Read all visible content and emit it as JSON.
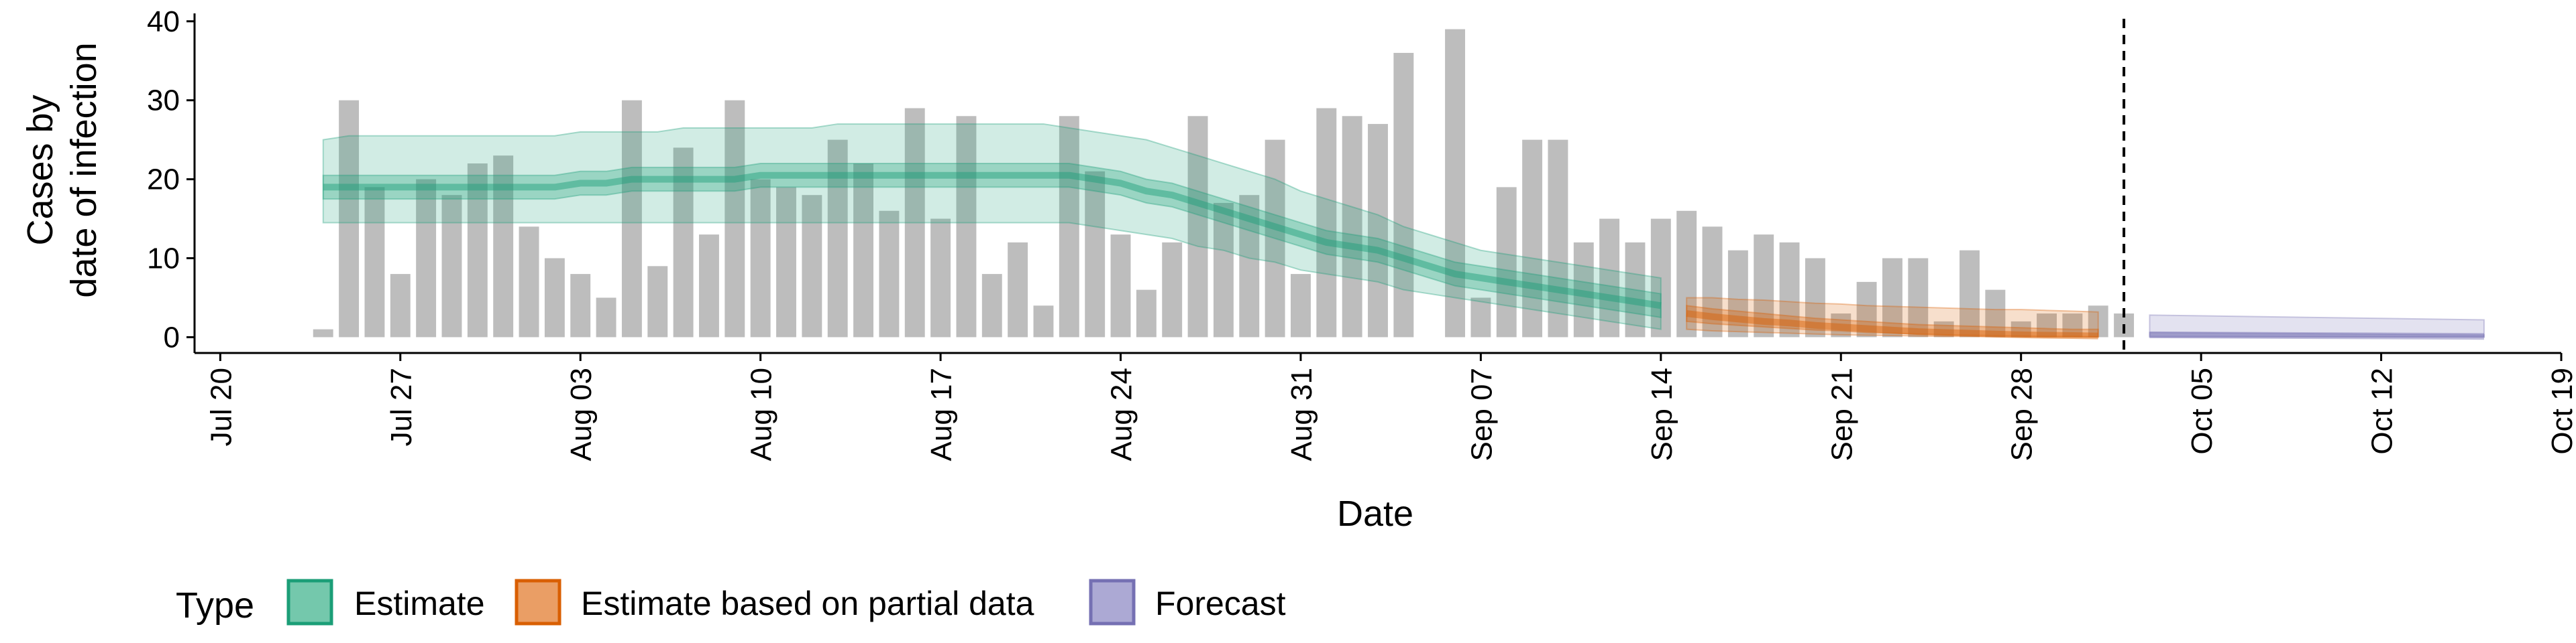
{
  "chart_data": {
    "type": "bar",
    "title": "",
    "xlabel": "Date",
    "ylabel": [
      "Cases by",
      "date of infection"
    ],
    "x_range": [
      "2020-07-19",
      "2020-10-19"
    ],
    "ylim": [
      -2,
      41
    ],
    "y_ticks": [
      0,
      10,
      20,
      30,
      40
    ],
    "x_ticks": [
      {
        "date": "2020-07-20",
        "label": "Jul 20"
      },
      {
        "date": "2020-07-27",
        "label": "Jul 27"
      },
      {
        "date": "2020-08-03",
        "label": "Aug 03"
      },
      {
        "date": "2020-08-10",
        "label": "Aug 10"
      },
      {
        "date": "2020-08-17",
        "label": "Aug 17"
      },
      {
        "date": "2020-08-24",
        "label": "Aug 24"
      },
      {
        "date": "2020-08-31",
        "label": "Aug 31"
      },
      {
        "date": "2020-09-07",
        "label": "Sep 07"
      },
      {
        "date": "2020-09-14",
        "label": "Sep 14"
      },
      {
        "date": "2020-09-21",
        "label": "Sep 21"
      },
      {
        "date": "2020-09-28",
        "label": "Sep 28"
      },
      {
        "date": "2020-10-05",
        "label": "Oct 05"
      },
      {
        "date": "2020-10-12",
        "label": "Oct 12"
      },
      {
        "date": "2020-10-19",
        "label": "Oct 19"
      }
    ],
    "grid": false,
    "legend_position": "bottom-left",
    "legend_title": "Type",
    "colors": {
      "bars": "#bdbdbd",
      "estimate": "#1b9e77",
      "partial": "#d95f02",
      "forecast": "#7570b3"
    },
    "bars": {
      "start_date": "2020-07-24",
      "values": [
        1,
        30,
        19,
        8,
        20,
        18,
        22,
        23,
        14,
        10,
        8,
        5,
        30,
        9,
        24,
        13,
        30,
        20,
        19,
        18,
        25,
        22,
        16,
        29,
        15,
        28,
        8,
        12,
        4,
        28,
        21,
        13,
        6,
        12,
        28,
        17,
        18,
        25,
        8,
        29,
        28,
        27,
        36,
        0,
        39,
        5,
        19,
        25,
        25,
        12,
        15,
        12,
        15,
        16,
        14,
        11,
        13,
        12,
        10,
        3,
        7,
        10,
        10,
        2,
        11,
        6,
        2,
        3,
        3,
        4,
        3
      ]
    },
    "vline_date": "2020-10-02",
    "series": [
      {
        "name": "Estimate",
        "start_date": "2020-07-24",
        "median": [
          19,
          19,
          19,
          19,
          19,
          19,
          19,
          19,
          19,
          19,
          19.5,
          19.5,
          20,
          20,
          20,
          20,
          20,
          20.5,
          20.5,
          20.5,
          20.5,
          20.5,
          20.5,
          20.5,
          20.5,
          20.5,
          20.5,
          20.5,
          20.5,
          20.5,
          20,
          19.5,
          18.5,
          18,
          17,
          16,
          15,
          14,
          13,
          12,
          11.5,
          11,
          10,
          9,
          8,
          7.5,
          7,
          6.5,
          6,
          5.5,
          5,
          4.5,
          4
        ],
        "inner": [
          [
            17.5,
            20.5
          ],
          [
            17.5,
            20.5
          ],
          [
            17.5,
            20.5
          ],
          [
            17.5,
            20.5
          ],
          [
            17.5,
            20.5
          ],
          [
            17.5,
            20.5
          ],
          [
            17.5,
            20.5
          ],
          [
            17.5,
            20.5
          ],
          [
            17.5,
            20.5
          ],
          [
            17.5,
            20.5
          ],
          [
            18,
            21
          ],
          [
            18,
            21
          ],
          [
            18.5,
            21.5
          ],
          [
            18.5,
            21.5
          ],
          [
            18.5,
            21.5
          ],
          [
            18.5,
            21.5
          ],
          [
            18.5,
            21.5
          ],
          [
            19,
            22
          ],
          [
            19,
            22
          ],
          [
            19,
            22
          ],
          [
            19,
            22
          ],
          [
            19,
            22
          ],
          [
            19,
            22
          ],
          [
            19,
            22
          ],
          [
            19,
            22
          ],
          [
            19,
            22
          ],
          [
            19,
            22
          ],
          [
            19,
            22
          ],
          [
            19,
            22
          ],
          [
            19,
            22
          ],
          [
            18.5,
            21.5
          ],
          [
            18,
            21
          ],
          [
            17,
            20
          ],
          [
            16.5,
            19.5
          ],
          [
            15.5,
            18.5
          ],
          [
            14.5,
            17.5
          ],
          [
            13.5,
            16.5
          ],
          [
            12.5,
            15.5
          ],
          [
            11.5,
            14.5
          ],
          [
            10.5,
            13.5
          ],
          [
            10,
            13
          ],
          [
            9.5,
            12.5
          ],
          [
            8.5,
            11.5
          ],
          [
            7.5,
            10.5
          ],
          [
            6.5,
            9.5
          ],
          [
            6,
            9
          ],
          [
            5.5,
            8.5
          ],
          [
            5,
            8
          ],
          [
            4.5,
            7.5
          ],
          [
            4,
            7
          ],
          [
            3.5,
            6.5
          ],
          [
            3,
            6
          ],
          [
            2.5,
            5.5
          ]
        ],
        "outer": [
          [
            14.5,
            25
          ],
          [
            14.5,
            25.5
          ],
          [
            14.5,
            25.5
          ],
          [
            14.5,
            25.5
          ],
          [
            14.5,
            25.5
          ],
          [
            14.5,
            25.5
          ],
          [
            14.5,
            25.5
          ],
          [
            14.5,
            25.5
          ],
          [
            14.5,
            25.5
          ],
          [
            14.5,
            25.5
          ],
          [
            14.5,
            26
          ],
          [
            14.5,
            26
          ],
          [
            14.5,
            26
          ],
          [
            14.5,
            26
          ],
          [
            14.5,
            26.5
          ],
          [
            14.5,
            26.5
          ],
          [
            14.5,
            26.5
          ],
          [
            14.5,
            26.5
          ],
          [
            14.5,
            26.5
          ],
          [
            14.5,
            26.5
          ],
          [
            14.5,
            27
          ],
          [
            14.5,
            27
          ],
          [
            14.5,
            27
          ],
          [
            14.5,
            27
          ],
          [
            14.5,
            27
          ],
          [
            14.5,
            27
          ],
          [
            14.5,
            27
          ],
          [
            14.5,
            27
          ],
          [
            14.5,
            27
          ],
          [
            14.5,
            26.5
          ],
          [
            14,
            26
          ],
          [
            13.5,
            25.5
          ],
          [
            13,
            25
          ],
          [
            12.5,
            24
          ],
          [
            11.5,
            23
          ],
          [
            11,
            22
          ],
          [
            10,
            21
          ],
          [
            9.5,
            20
          ],
          [
            8.5,
            18.5
          ],
          [
            8,
            17.5
          ],
          [
            7.5,
            16.5
          ],
          [
            7,
            15.5
          ],
          [
            6,
            14
          ],
          [
            5.5,
            13
          ],
          [
            5,
            12
          ],
          [
            4.5,
            11
          ],
          [
            4,
            10.5
          ],
          [
            3.5,
            10
          ],
          [
            3,
            9.5
          ],
          [
            2.5,
            9
          ],
          [
            2,
            8.5
          ],
          [
            1.5,
            8
          ],
          [
            1,
            7.5
          ]
        ]
      },
      {
        "name": "Estimate based on partial data",
        "start_date": "2020-09-15",
        "median": [
          3,
          2.6,
          2.3,
          2,
          1.8,
          1.5,
          1.3,
          1.1,
          0.9,
          0.7,
          0.6,
          0.5,
          0.4,
          0.3,
          0.25,
          0.2,
          0.15
        ],
        "inner": [
          [
            2,
            4
          ],
          [
            1.7,
            3.6
          ],
          [
            1.5,
            3.3
          ],
          [
            1.3,
            3
          ],
          [
            1.1,
            2.7
          ],
          [
            0.9,
            2.4
          ],
          [
            0.8,
            2.2
          ],
          [
            0.6,
            2
          ],
          [
            0.5,
            1.8
          ],
          [
            0.4,
            1.6
          ],
          [
            0.3,
            1.5
          ],
          [
            0.25,
            1.4
          ],
          [
            0.2,
            1.3
          ],
          [
            0.15,
            1.2
          ],
          [
            0.1,
            1.1
          ],
          [
            0.1,
            1
          ],
          [
            0.05,
            1
          ]
        ],
        "outer": [
          [
            1,
            5
          ],
          [
            0.8,
            5
          ],
          [
            0.7,
            4.8
          ],
          [
            0.6,
            4.7
          ],
          [
            0.5,
            4.5
          ],
          [
            0.4,
            4.3
          ],
          [
            0.3,
            4.2
          ],
          [
            0.25,
            4
          ],
          [
            0.2,
            3.9
          ],
          [
            0.15,
            3.8
          ],
          [
            0.1,
            3.7
          ],
          [
            0.1,
            3.6
          ],
          [
            0.05,
            3.5
          ],
          [
            0.05,
            3.5
          ],
          [
            0,
            3.4
          ],
          [
            0,
            3.3
          ],
          [
            0,
            3.2
          ]
        ]
      },
      {
        "name": "Forecast",
        "start_date": "2020-10-03",
        "median": [
          0.3,
          0.1
        ],
        "inner": [
          [
            0.1,
            0.6
          ],
          [
            0.05,
            0.3
          ]
        ],
        "outer": [
          [
            0,
            2.8
          ],
          [
            0,
            2.2
          ]
        ],
        "end_date": "2020-10-16"
      }
    ]
  }
}
